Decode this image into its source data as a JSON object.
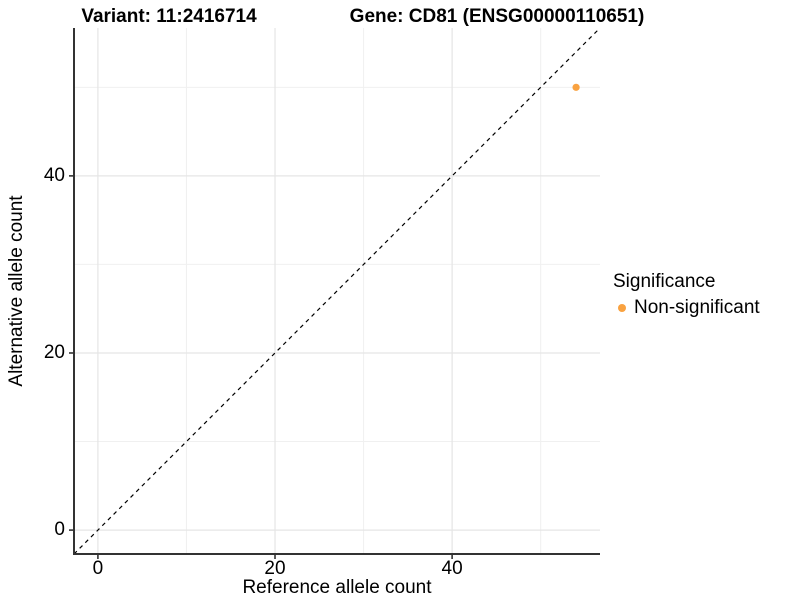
{
  "title": {
    "left": "Variant: 11:2416714",
    "right": "Gene: CD81 (ENSG00000110651)"
  },
  "chart_data": {
    "type": "scatter",
    "title_left": "Variant: 11:2416714",
    "title_right": "Gene: CD81 (ENSG00000110651)",
    "xlabel": "Reference allele count",
    "ylabel": "Alternative allele count",
    "xlim": [
      -2.7,
      56.7
    ],
    "ylim": [
      -2.7,
      56.7
    ],
    "x_ticks": [
      0,
      20,
      40
    ],
    "y_ticks": [
      0,
      20,
      40
    ],
    "x_minor_ticks": [
      10,
      30,
      50
    ],
    "y_minor_ticks": [
      10,
      30,
      50
    ],
    "grid": true,
    "aspect": "equal",
    "points": [
      {
        "x": 54,
        "y": 50,
        "series": "Non-significant"
      }
    ],
    "reference_line": {
      "kind": "identity",
      "slope": 1,
      "intercept": 0,
      "style": "dashed"
    },
    "legend": {
      "title": "Significance",
      "position": "right",
      "entries": [
        {
          "label": "Non-significant",
          "color": "#F9A240"
        }
      ]
    }
  },
  "colors": {
    "point": "#F9A240",
    "axis": "#333333",
    "grid_major": "#E5E5E5",
    "grid_minor": "#F0F0F0",
    "reference_line": "#000000",
    "background": "#FFFFFF"
  }
}
